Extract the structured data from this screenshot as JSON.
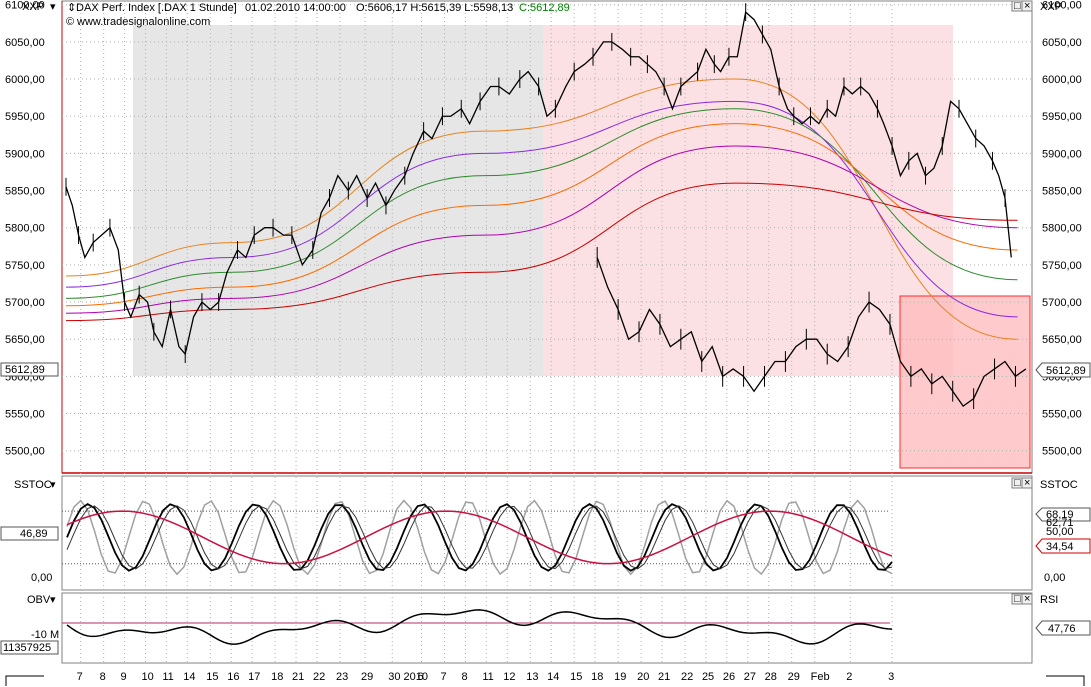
{
  "chart_data": [
    {
      "panel": "price",
      "type": "line",
      "header": {
        "name": "DAX Perf. Index [.DAX  1 Stunde]",
        "datetime": "01.02.2010 14:00:00",
        "ohlc": "O:5606,17 H:5615,39 L:5598,13",
        "close_label": "C:5612,89",
        "source": "www.tradesignalonline.com"
      },
      "symbol_left": "XXP",
      "symbol_right": "XXP",
      "y_range": [
        5470,
        6105
      ],
      "y_ticks": [
        "6100,00",
        "6050,00",
        "6000,00",
        "5950,00",
        "5900,00",
        "5850,00",
        "5800,00",
        "5750,00",
        "5700,00",
        "5650,00",
        "5600,00",
        "5550,00",
        "5500,00"
      ],
      "y_tick_values": [
        6100,
        6050,
        6000,
        5950,
        5900,
        5850,
        5800,
        5750,
        5700,
        5650,
        5600,
        5550,
        5500
      ],
      "last_value_left": "5612,89",
      "last_value_right": "5612,89",
      "x_range": [
        0,
        46
      ],
      "price_path": [
        [
          0,
          5855
        ],
        [
          0.3,
          5830
        ],
        [
          0.6,
          5790
        ],
        [
          0.9,
          5760
        ],
        [
          1.3,
          5780
        ],
        [
          1.7,
          5790
        ],
        [
          2.1,
          5800
        ],
        [
          2.5,
          5770
        ],
        [
          2.8,
          5700
        ],
        [
          3.1,
          5680
        ],
        [
          3.5,
          5710
        ],
        [
          3.9,
          5700
        ],
        [
          4.2,
          5660
        ],
        [
          4.6,
          5640
        ],
        [
          5,
          5690
        ],
        [
          5.4,
          5640
        ],
        [
          5.7,
          5630
        ],
        [
          6.1,
          5680
        ],
        [
          6.5,
          5700
        ],
        [
          6.9,
          5690
        ],
        [
          7.3,
          5700
        ],
        [
          7.7,
          5740
        ],
        [
          8.2,
          5770
        ],
        [
          8.6,
          5760
        ],
        [
          9,
          5790
        ],
        [
          9.5,
          5800
        ],
        [
          9.9,
          5800
        ],
        [
          10.4,
          5790
        ],
        [
          10.8,
          5790
        ],
        [
          11.3,
          5750
        ],
        [
          11.8,
          5770
        ],
        [
          12.2,
          5820
        ],
        [
          12.6,
          5840
        ],
        [
          13,
          5870
        ],
        [
          13.5,
          5850
        ],
        [
          13.9,
          5870
        ],
        [
          14.4,
          5840
        ],
        [
          14.8,
          5860
        ],
        [
          15.3,
          5830
        ],
        [
          15.7,
          5850
        ],
        [
          16.2,
          5870
        ],
        [
          16.6,
          5900
        ],
        [
          17.1,
          5930
        ],
        [
          17.5,
          5920
        ],
        [
          18,
          5950
        ],
        [
          18.4,
          5950
        ],
        [
          18.9,
          5960
        ],
        [
          19.3,
          5940
        ],
        [
          19.8,
          5970
        ],
        [
          20.3,
          5990
        ],
        [
          20.7,
          5990
        ],
        [
          21.2,
          5980
        ],
        [
          21.7,
          6000
        ],
        [
          22.1,
          6010
        ],
        [
          22.6,
          5990
        ],
        [
          23,
          5950
        ],
        [
          23.4,
          5960
        ],
        [
          23.9,
          5990
        ],
        [
          24.3,
          6010
        ],
        [
          24.8,
          6020
        ],
        [
          25.2,
          6030
        ],
        [
          25.7,
          6050
        ],
        [
          26.1,
          6050
        ],
        [
          26.6,
          6040
        ],
        [
          27,
          6030
        ],
        [
          27.4,
          6030
        ],
        [
          27.8,
          6020
        ],
        [
          28.2,
          6010
        ],
        [
          28.6,
          5990
        ],
        [
          29,
          5960
        ],
        [
          29.4,
          5990
        ],
        [
          29.8,
          6000
        ],
        [
          30.2,
          6010
        ],
        [
          30.6,
          6040
        ],
        [
          31,
          6020
        ],
        [
          31.3,
          6010
        ],
        [
          31.7,
          6030
        ],
        [
          32.1,
          6030
        ],
        [
          32.5,
          6090
        ],
        [
          32.9,
          6080
        ],
        [
          33.3,
          6060
        ],
        [
          33.7,
          6040
        ],
        [
          34.1,
          5990
        ],
        [
          34.5,
          5960
        ],
        [
          34.8,
          5950
        ],
        [
          35.2,
          5940
        ],
        [
          35.6,
          5950
        ],
        [
          36,
          5940
        ],
        [
          36.4,
          5960
        ],
        [
          36.8,
          5950
        ],
        [
          37.2,
          5990
        ],
        [
          37.6,
          5980
        ],
        [
          38,
          5990
        ],
        [
          38.4,
          5980
        ],
        [
          38.8,
          5960
        ],
        [
          39.1,
          5940
        ],
        [
          39.5,
          5910
        ],
        [
          39.9,
          5870
        ],
        [
          40.3,
          5890
        ],
        [
          40.7,
          5900
        ],
        [
          41.1,
          5870
        ],
        [
          41.5,
          5880
        ],
        [
          41.9,
          5910
        ],
        [
          42.3,
          5970
        ],
        [
          42.7,
          5960
        ],
        [
          43.1,
          5940
        ],
        [
          43.5,
          5920
        ],
        [
          43.9,
          5910
        ],
        [
          44.3,
          5890
        ],
        [
          44.6,
          5870
        ],
        [
          44.9,
          5840
        ],
        [
          45.2,
          5760
        ]
      ],
      "price_path_2": [
        [
          0,
          5760
        ],
        [
          0.5,
          5720
        ],
        [
          1,
          5690
        ],
        [
          1.5,
          5650
        ],
        [
          2,
          5660
        ],
        [
          2.5,
          5690
        ],
        [
          3,
          5670
        ],
        [
          3.5,
          5640
        ],
        [
          4,
          5650
        ],
        [
          4.5,
          5660
        ],
        [
          5,
          5620
        ],
        [
          5.5,
          5640
        ],
        [
          6,
          5600
        ],
        [
          6.5,
          5610
        ],
        [
          7,
          5600
        ],
        [
          7.5,
          5580
        ],
        [
          8,
          5600
        ],
        [
          8.5,
          5620
        ],
        [
          9,
          5620
        ],
        [
          9.5,
          5640
        ],
        [
          10,
          5650
        ],
        [
          10.5,
          5650
        ],
        [
          11,
          5630
        ],
        [
          11.5,
          5620
        ],
        [
          12,
          5640
        ],
        [
          12.5,
          5680
        ],
        [
          13,
          5700
        ],
        [
          13.5,
          5690
        ],
        [
          14,
          5670
        ],
        [
          14.5,
          5620
        ],
        [
          15,
          5600
        ],
        [
          15.5,
          5610
        ],
        [
          16,
          5590
        ],
        [
          16.5,
          5600
        ],
        [
          17,
          5580
        ],
        [
          17.5,
          5560
        ],
        [
          18,
          5570
        ],
        [
          18.5,
          5600
        ],
        [
          19,
          5610
        ],
        [
          19.5,
          5620
        ],
        [
          20,
          5600
        ],
        [
          20.5,
          5610
        ]
      ],
      "indicator_lines": [
        {
          "color": "#e8821e",
          "start": [
            0,
            5735
          ],
          "ctrl": [
            [
              8,
              5780
            ],
            [
              20,
              5930
            ],
            [
              32,
              6000
            ]
          ],
          "end": [
            45.5,
            5650
          ]
        },
        {
          "color": "#8a2be2",
          "start": [
            0,
            5720
          ],
          "ctrl": [
            [
              8,
              5760
            ],
            [
              20,
              5900
            ],
            [
              32,
              5970
            ]
          ],
          "end": [
            45.5,
            5680
          ]
        },
        {
          "color": "#2e8b2e",
          "start": [
            0,
            5705
          ],
          "ctrl": [
            [
              8,
              5740
            ],
            [
              20,
              5870
            ],
            [
              32,
              5960
            ]
          ],
          "end": [
            45.5,
            5730
          ]
        },
        {
          "color": "#ff6a00",
          "start": [
            0,
            5695
          ],
          "ctrl": [
            [
              8,
              5720
            ],
            [
              20,
              5830
            ],
            [
              32,
              5940
            ]
          ],
          "end": [
            45.5,
            5770
          ]
        },
        {
          "color": "#b000b0",
          "start": [
            0,
            5685
          ],
          "ctrl": [
            [
              8,
              5705
            ],
            [
              20,
              5790
            ],
            [
              32,
              5910
            ]
          ],
          "end": [
            45.5,
            5800
          ]
        },
        {
          "color": "#cc0000",
          "start": [
            0,
            5675
          ],
          "ctrl": [
            [
              8,
              5690
            ],
            [
              20,
              5740
            ],
            [
              32,
              5860
            ]
          ],
          "end": [
            45.5,
            5810
          ]
        }
      ]
    },
    {
      "panel": "sstoc",
      "type": "line",
      "label_left": "SSTOC",
      "label_right": "SSTOC",
      "y_range": [
        -10,
        120
      ],
      "y_ticks": [
        "50,00",
        "0,00"
      ],
      "y_tick_values": [
        50,
        0
      ],
      "levels": [
        80,
        20
      ],
      "last_value_left": "46,89",
      "right_values": [
        "68,19",
        "62,71",
        "50,00",
        "34,54"
      ]
    },
    {
      "panel": "obv",
      "type": "line",
      "label_left": "OBV",
      "label_right": "RSI",
      "y_tick": "-10 M",
      "last_value_left": "11357925",
      "last_value_right": "47,76"
    }
  ],
  "x_axis": {
    "labels": [
      "7",
      "8",
      "9",
      "10",
      "11",
      "14",
      "15",
      "16",
      "17",
      "18",
      "21",
      "22",
      "23",
      "29",
      "30 2010",
      "6",
      "7",
      "8",
      "11",
      "12",
      "13",
      "14",
      "15",
      "18",
      "19",
      "20",
      "21",
      "22",
      "25",
      "26",
      "27",
      "28",
      "29",
      "Feb",
      "2",
      "3"
    ],
    "positions": [
      0.7,
      1.8,
      2.8,
      3.8,
      4.8,
      5.8,
      6.9,
      7.9,
      8.9,
      10,
      11,
      12,
      13.1,
      14.3,
      15.6,
      17,
      18.1,
      19.1,
      20.1,
      21.1,
      22.2,
      23.2,
      24.3,
      25.3,
      26.4,
      27.5,
      28.5,
      29.6,
      30.6,
      31.6,
      32.6,
      33.6,
      34.7,
      35.8,
      37.5,
      39.5
    ]
  },
  "colors": {
    "grid": "#a0a0a0",
    "shade_grey": "#e6e6e6",
    "shade_pink": "#fbe1e3",
    "future_box": "#ffc6c8",
    "future_box_border": "#ff2a2a",
    "price_red_line": "#cc0000",
    "close_green": "#008000"
  }
}
